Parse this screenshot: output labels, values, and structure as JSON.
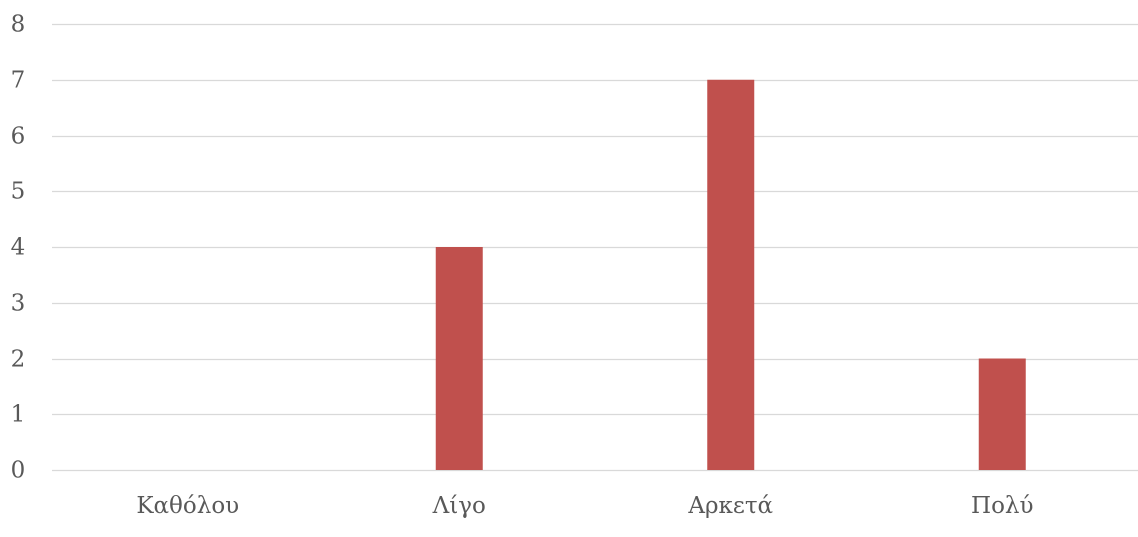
{
  "chart_data": {
    "type": "bar",
    "title": "",
    "xlabel": "",
    "ylabel": "",
    "categories": [
      "Καθόλου",
      "Λίγο",
      "Αρκετά",
      "Πολύ"
    ],
    "values": [
      0,
      4,
      7,
      2
    ],
    "ylim": [
      0,
      8
    ],
    "yticks": [
      0,
      1,
      2,
      3,
      4,
      5,
      6,
      7,
      8
    ],
    "grid": true,
    "legend": "none",
    "bar_color": "#C0504D",
    "grid_color": "#D9D9D9",
    "text_color": "#595959"
  }
}
